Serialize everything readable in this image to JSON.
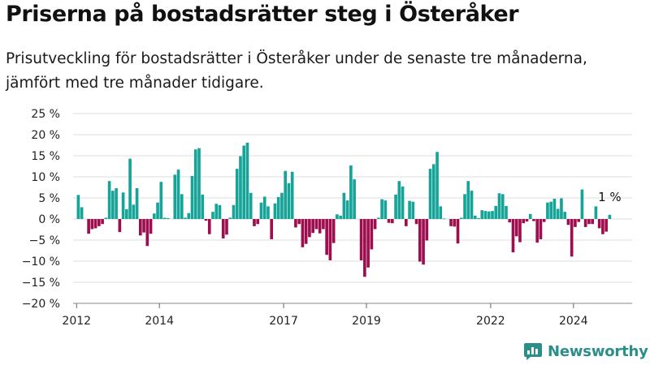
{
  "title": "Priserna på bostadsrätter steg i Österåker",
  "subtitle": "Prisutveckling för bostadsrätter i Österåker under de senaste tre månaderna, jämfört med tre månader tidigare.",
  "brand": {
    "name": "Newsworthy"
  },
  "colors": {
    "positive": "#16a398",
    "negative": "#9e0e4f",
    "grid": "#dddddd",
    "brand": "#2a8f8a"
  },
  "chart_data": {
    "type": "bar",
    "x_start": "2011-12",
    "x_end": "2025-06",
    "x_ticks": [
      {
        "date": "2012-01",
        "label": "2012"
      },
      {
        "date": "2014-01",
        "label": "2014"
      },
      {
        "date": "2017-01",
        "label": "2017"
      },
      {
        "date": "2019-01",
        "label": "2019"
      },
      {
        "date": "2022-01",
        "label": "2022"
      },
      {
        "date": "2024-01",
        "label": "2024"
      }
    ],
    "ylim": [
      -20,
      25
    ],
    "y_ticks": [
      25,
      20,
      15,
      10,
      5,
      0,
      -5,
      -10,
      -15,
      -20
    ],
    "y_tick_labels": [
      "25 %",
      "20 %",
      "15 %",
      "10 %",
      "5 %",
      "0 %",
      "−5 %",
      "−10 %",
      "−15 %",
      "−20 %"
    ],
    "grid": true,
    "start_month": "2012-01",
    "values": [
      5.7,
      2.8,
      0.0,
      -3.5,
      -2.4,
      -2.2,
      -1.7,
      -1.2,
      0.3,
      9.0,
      6.7,
      7.3,
      -3.1,
      6.3,
      2.3,
      14.3,
      3.4,
      7.3,
      -3.9,
      -3.2,
      -6.4,
      -3.5,
      1.3,
      3.9,
      8.8,
      0.3,
      0.2,
      0.0,
      10.5,
      11.7,
      5.9,
      0.3,
      1.4,
      10.2,
      16.5,
      16.8,
      5.8,
      -0.4,
      -3.6,
      1.7,
      3.6,
      3.3,
      -4.6,
      -3.7,
      0.3,
      3.3,
      11.9,
      14.9,
      17.4,
      18.1,
      6.2,
      -1.7,
      -1.2,
      3.9,
      5.3,
      3.0,
      -4.8,
      3.7,
      5.2,
      6.2,
      11.4,
      8.5,
      11.2,
      -2.0,
      -1.2,
      -6.7,
      -5.9,
      -4.3,
      -3.3,
      -2.4,
      -3.4,
      -2.4,
      -8.5,
      -9.8,
      -5.7,
      1.1,
      0.8,
      6.2,
      4.4,
      12.7,
      9.4,
      0.0,
      -9.8,
      -13.7,
      -11.5,
      -7.2,
      -2.4,
      0.3,
      4.7,
      4.4,
      -0.9,
      -1.0,
      5.8,
      9.0,
      7.7,
      -1.7,
      4.3,
      4.1,
      -1.2,
      -10.1,
      -10.8,
      -5.1,
      11.9,
      13.0,
      15.9,
      3.0,
      0.1,
      0.0,
      -1.7,
      -1.8,
      -5.8,
      0.3,
      5.9,
      9.0,
      6.7,
      0.8,
      0.2,
      2.1,
      1.9,
      1.8,
      1.9,
      3.1,
      6.1,
      5.9,
      3.1,
      -0.8,
      -7.9,
      -4.1,
      -5.5,
      -1.0,
      -0.6,
      1.2,
      -0.5,
      -5.6,
      -4.8,
      -0.7,
      3.9,
      4.1,
      4.8,
      2.4,
      4.9,
      1.7,
      -1.4,
      -8.9,
      -1.9,
      -0.7,
      7.0,
      -1.9,
      -1.2,
      -1.2,
      3.0,
      -2.2,
      -3.6,
      -3.0,
      1.0
    ],
    "annotation": {
      "text": "1 %",
      "month": "2024-11"
    }
  }
}
